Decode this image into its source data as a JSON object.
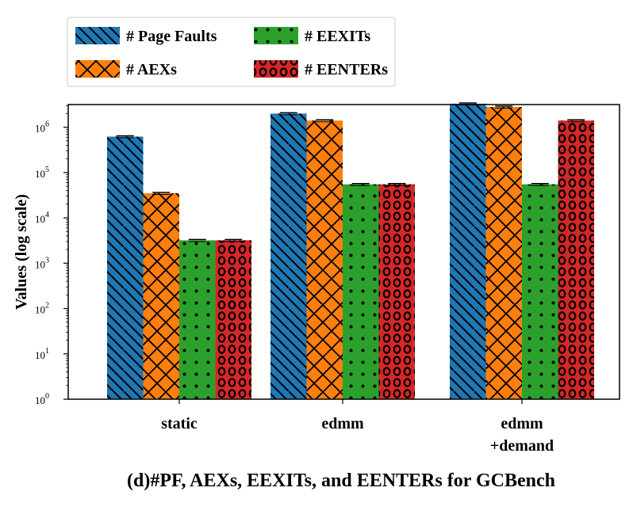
{
  "chart_data": {
    "type": "bar",
    "categories": [
      "static",
      "edmm",
      "edmm\n+demand"
    ],
    "series": [
      {
        "name": "# Page Faults",
        "values": [
          620000,
          2000000,
          3300000
        ],
        "color": "#1f77b4",
        "pattern": "diagonal-backslash"
      },
      {
        "name": "# AEXs",
        "values": [
          35000,
          1400000,
          2800000
        ],
        "color": "#ff7f0e",
        "pattern": "crosshatch"
      },
      {
        "name": "# EEXITs",
        "values": [
          3200,
          55000,
          55000
        ],
        "color": "#2ca02c",
        "pattern": "dots"
      },
      {
        "name": "# EENTERs",
        "values": [
          3200,
          55000,
          1400000
        ],
        "color": "#d62728",
        "pattern": "rings"
      }
    ],
    "yscale": "log",
    "ylim": [
      1,
      4000000
    ],
    "yticks": [
      {
        "base": "10",
        "exp": "0",
        "value": 1
      },
      {
        "base": "10",
        "exp": "1",
        "value": 10
      },
      {
        "base": "10",
        "exp": "2",
        "value": 100
      },
      {
        "base": "10",
        "exp": "3",
        "value": 1000
      },
      {
        "base": "10",
        "exp": "4",
        "value": 10000
      },
      {
        "base": "10",
        "exp": "5",
        "value": 100000
      },
      {
        "base": "10",
        "exp": "6",
        "value": 1000000
      }
    ],
    "ylabel": "Values (log scale)",
    "title": "(d)#PF, AEXs, EEXITs, and EENTERs for GCBench",
    "legend_position": "top-left",
    "legend_columns": 2,
    "error_bars": true
  }
}
